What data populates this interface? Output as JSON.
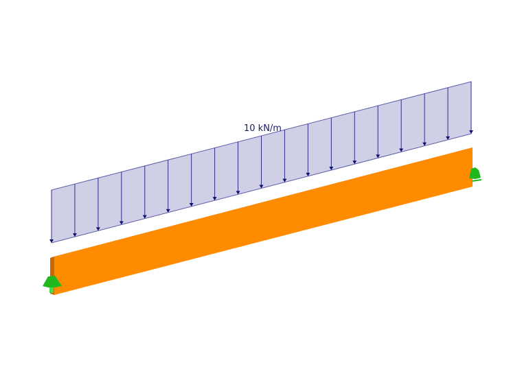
{
  "load": {
    "label": "10 kN/m",
    "arrow_count": 19
  },
  "colors": {
    "load_fill": "#cfd0e6",
    "load_stroke": "#2c2c8a",
    "beam_front": "#ff8c00",
    "beam_top": "#b35f00",
    "support": "#1fb81f"
  }
}
